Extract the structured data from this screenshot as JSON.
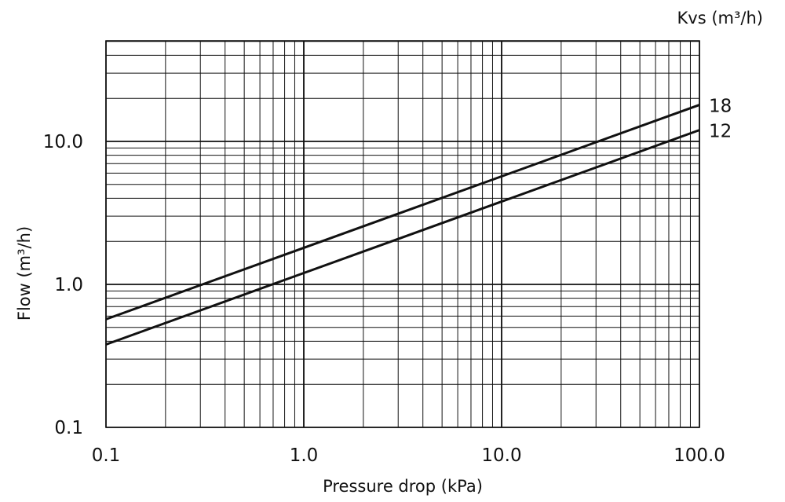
{
  "chart_data": {
    "type": "line",
    "x_scale": "log",
    "y_scale": "log",
    "xlabel": "Pressure drop (kPa)",
    "ylabel": "Flow (m³/h)",
    "series_header": "Kvs (m³/h)",
    "xlim": [
      0.1,
      100.0
    ],
    "ylim": [
      0.1,
      50.0
    ],
    "x_ticks": [
      "0.1",
      "1.0",
      "10.0",
      "100.0"
    ],
    "y_ticks": [
      "0.1",
      "1.0",
      "10.0"
    ],
    "grid": true,
    "series": [
      {
        "name": "18",
        "x": [
          0.1,
          100.0
        ],
        "y": [
          0.57,
          18.0
        ]
      },
      {
        "name": "12",
        "x": [
          0.1,
          100.0
        ],
        "y": [
          0.38,
          12.0
        ]
      }
    ]
  }
}
